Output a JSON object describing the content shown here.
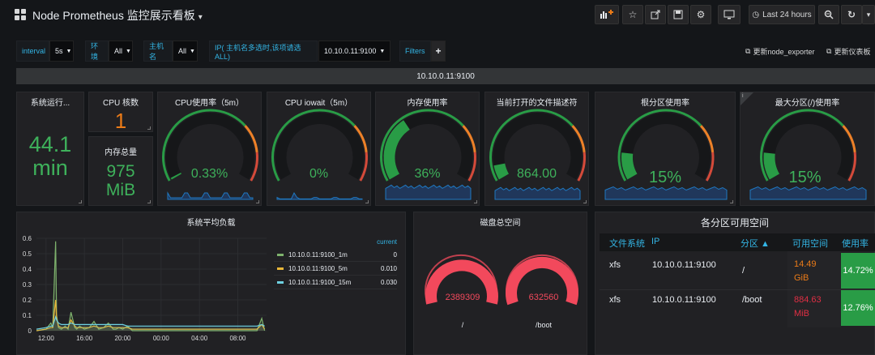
{
  "header": {
    "title": "Node Prometheus 监控展示看板",
    "time_range": "Last 24 hours"
  },
  "variables": [
    {
      "label": "interval",
      "value": "5s"
    },
    {
      "label": "环境",
      "value": "All"
    },
    {
      "label": "主机名",
      "value": "All"
    },
    {
      "label": "IP( 主机名多选时,该项请选ALL)",
      "value": "10.10.0.11:9100"
    }
  ],
  "filters_label": "Filters",
  "filters_add": "+",
  "links": [
    {
      "label": "更新node_exporter"
    },
    {
      "label": "更新仪表板"
    }
  ],
  "row_title": "10.10.0.11:9100",
  "panels": {
    "uptime": {
      "title": "系统运行...",
      "value_line1": "44.1",
      "value_line2": "min"
    },
    "cpu_cores": {
      "title": "CPU 核数",
      "value": "1"
    },
    "mem_total": {
      "title": "内存总量",
      "value_line1": "975",
      "value_line2": "MiB"
    },
    "cpu_usage": {
      "title": "CPU使用率（5m）",
      "value": "0.33%",
      "fraction": 0.0033
    },
    "cpu_iowait": {
      "title": "CPU iowait（5m）",
      "value": "0%",
      "fraction": 0
    },
    "mem_usage": {
      "title": "内存使用率",
      "value": "36%",
      "fraction": 0.36
    },
    "fd_open": {
      "title": "当前打开的文件描述符",
      "value": "864.00",
      "fraction": 0.08
    },
    "root_usage": {
      "title": "根分区使用率",
      "value": "15%",
      "fraction": 0.15
    },
    "max_part_usage": {
      "title": "最大分区(/)使用率",
      "value": "15%",
      "fraction": 0.15,
      "info": "i"
    },
    "load": {
      "title": "系统平均负载"
    },
    "disk_total": {
      "title": "磁盘总空间",
      "gauges": [
        {
          "value": "2389309",
          "label": "/"
        },
        {
          "value": "632560",
          "label": "/boot"
        }
      ]
    },
    "partitions": {
      "title": "各分区可用空间"
    }
  },
  "partitions_table": {
    "columns": [
      "文件系统",
      "IP",
      "分区 ▲",
      "可用空间",
      "使用率"
    ],
    "rows": [
      {
        "fs": "xfs",
        "ip": "10.10.0.11:9100",
        "mount": "/",
        "free_num": "14.49",
        "free_unit": "GiB",
        "usage": "14.72%"
      },
      {
        "fs": "xfs",
        "ip": "10.10.0.11:9100",
        "mount": "/boot",
        "free_num": "884.63",
        "free_unit": "MiB",
        "usage": "12.76%"
      }
    ]
  },
  "chart_data": {
    "type": "line",
    "x_ticks": [
      "12:00",
      "16:00",
      "20:00",
      "00:00",
      "04:00",
      "08:00"
    ],
    "ylim": [
      0,
      0.6
    ],
    "y_ticks": [
      "0",
      "0.1",
      "0.2",
      "0.3",
      "0.4",
      "0.5",
      "0.6"
    ],
    "legend_header": "current",
    "legend_position": "right",
    "x": [
      0,
      1,
      1.5,
      1.7,
      2,
      2.1,
      2.3,
      2.6,
      3,
      3.3,
      3.6,
      4,
      4.2,
      4.5,
      5,
      5.5,
      6,
      6.5,
      7,
      7.5,
      8,
      8.3,
      8.6,
      9,
      9.5,
      10,
      11,
      12,
      13,
      14,
      15,
      16,
      17,
      18,
      19,
      20,
      21,
      22,
      23,
      23.5,
      23.8
    ],
    "series": [
      {
        "name": "10.10.0.11:9100_1m",
        "color": "#7eb26d",
        "current": "0",
        "values": [
          0,
          0.01,
          0.05,
          0.02,
          0.58,
          0.1,
          0.02,
          0.01,
          0.03,
          0.01,
          0.12,
          0.02,
          0.01,
          0.03,
          0.01,
          0.02,
          0.06,
          0.01,
          0.02,
          0.05,
          0.01,
          0.01,
          0.02,
          0.01,
          0.03,
          0,
          0,
          0,
          0,
          0,
          0,
          0,
          0,
          0,
          0,
          0,
          0,
          0,
          0,
          0.08,
          0
        ]
      },
      {
        "name": "10.10.0.11:9100_5m",
        "color": "#eab839",
        "current": "0.010",
        "values": [
          0,
          0.01,
          0.02,
          0.02,
          0.2,
          0.08,
          0.03,
          0.02,
          0.02,
          0.02,
          0.07,
          0.03,
          0.02,
          0.02,
          0.02,
          0.02,
          0.03,
          0.02,
          0.02,
          0.03,
          0.02,
          0.02,
          0.02,
          0.02,
          0.02,
          0.01,
          0.01,
          0.01,
          0.01,
          0.01,
          0.01,
          0.01,
          0.01,
          0.01,
          0.01,
          0.01,
          0.01,
          0.01,
          0.01,
          0.04,
          0.01
        ]
      },
      {
        "name": "10.10.0.11:9100_15m",
        "color": "#6ed0e0",
        "current": "0.030",
        "values": [
          0.01,
          0.02,
          0.03,
          0.03,
          0.09,
          0.07,
          0.05,
          0.04,
          0.04,
          0.04,
          0.05,
          0.04,
          0.04,
          0.04,
          0.04,
          0.04,
          0.04,
          0.04,
          0.04,
          0.04,
          0.04,
          0.04,
          0.04,
          0.04,
          0.03,
          0.03,
          0.03,
          0.03,
          0.03,
          0.03,
          0.03,
          0.03,
          0.03,
          0.03,
          0.03,
          0.03,
          0.03,
          0.03,
          0.03,
          0.04,
          0.03
        ]
      }
    ]
  },
  "colors": {
    "ok": "#299c46",
    "warn": "#ed8128",
    "crit": "#d44a3a",
    "value": "#3eb15b",
    "orange": "#eb7b18",
    "accent": "#33b5e5"
  }
}
